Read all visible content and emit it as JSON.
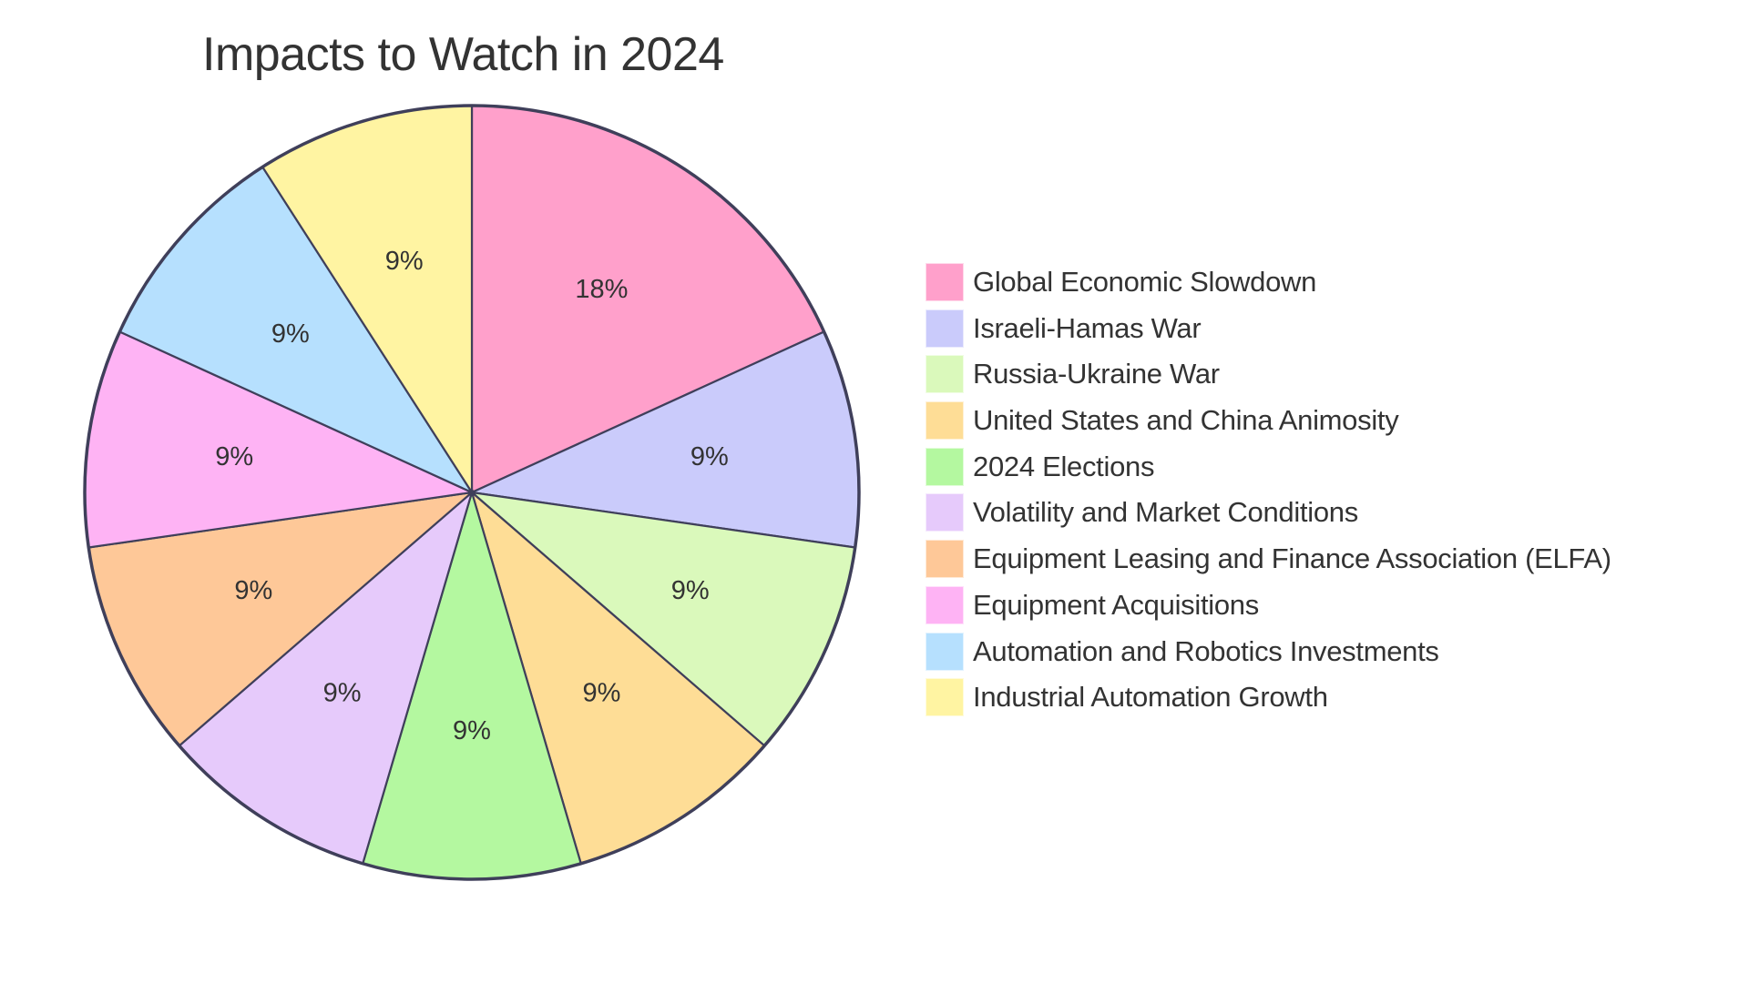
{
  "title": "Impacts to Watch in 2024",
  "chart_data": {
    "type": "pie",
    "title": "Impacts to Watch in 2024",
    "categories": [
      "Global Economic Slowdown",
      "Israeli-Hamas War",
      "Russia-Ukraine War",
      "United States and China Animosity",
      "2024 Elections",
      "Volatility and Market Conditions",
      "Equipment Leasing and Finance Association (ELFA)",
      "Equipment Acquisitions",
      "Automation and Robotics Investments",
      "Industrial Automation Growth"
    ],
    "values": [
      2,
      1,
      1,
      1,
      1,
      1,
      1,
      1,
      1,
      1
    ],
    "labels": [
      "18%",
      "9%",
      "9%",
      "9%",
      "9%",
      "9%",
      "9%",
      "9%",
      "9%",
      "9%"
    ],
    "colors": [
      "#FFA0CB",
      "#CACBFB",
      "#DAF9BB",
      "#FEDD96",
      "#B4F8A0",
      "#E6CAFB",
      "#FEC898",
      "#FEB3F4",
      "#B6E0FE",
      "#FFF4A2"
    ],
    "stroke_color": "#3F3F5A",
    "legend_position": "right",
    "start_angle": "12 o'clock",
    "direction": "clockwise"
  },
  "legend": {
    "items": [
      {
        "label": "Global Economic Slowdown",
        "color": "#FFA0CB"
      },
      {
        "label": "Israeli-Hamas War",
        "color": "#CACBFB"
      },
      {
        "label": "Russia-Ukraine War",
        "color": "#DAF9BB"
      },
      {
        "label": "United States and China Animosity",
        "color": "#FEDD96"
      },
      {
        "label": "2024 Elections",
        "color": "#B4F8A0"
      },
      {
        "label": "Volatility and Market Conditions",
        "color": "#E6CAFB"
      },
      {
        "label": "Equipment Leasing and Finance Association (ELFA)",
        "color": "#FEC898"
      },
      {
        "label": "Equipment Acquisitions",
        "color": "#FEB3F4"
      },
      {
        "label": "Automation and Robotics Investments",
        "color": "#B6E0FE"
      },
      {
        "label": "Industrial Automation Growth",
        "color": "#FFF4A2"
      }
    ]
  }
}
